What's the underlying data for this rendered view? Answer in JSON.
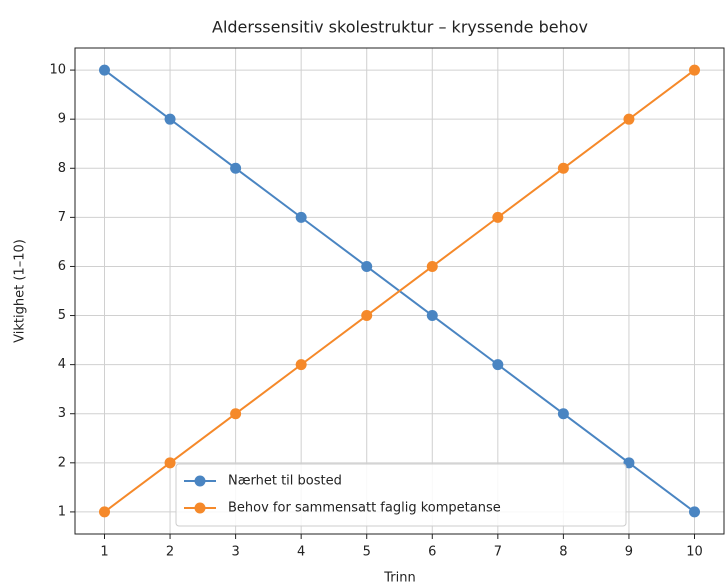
{
  "chart_data": {
    "type": "line",
    "title": "Alderssensitiv skolestruktur – kryssende behov",
    "xlabel": "Trinn",
    "ylabel": "Viktighet (1–10)",
    "x": [
      1,
      2,
      3,
      4,
      5,
      6,
      7,
      8,
      9,
      10
    ],
    "series": [
      {
        "name": "Nærhet til bosted",
        "color": "#4a85c2",
        "values": [
          10,
          9,
          8,
          7,
          6,
          5,
          4,
          3,
          2,
          1
        ]
      },
      {
        "name": "Behov for sammensatt faglig kompetanse",
        "color": "#f5892a",
        "values": [
          1,
          2,
          3,
          4,
          5,
          6,
          7,
          8,
          9,
          10
        ]
      }
    ],
    "xlim": [
      0.55,
      10.45
    ],
    "ylim": [
      0.55,
      10.45
    ],
    "xticks": [
      1,
      2,
      3,
      4,
      5,
      6,
      7,
      8,
      9,
      10
    ],
    "yticks": [
      1,
      2,
      3,
      4,
      5,
      6,
      7,
      8,
      9,
      10
    ],
    "grid": true,
    "legend": "lower center"
  }
}
